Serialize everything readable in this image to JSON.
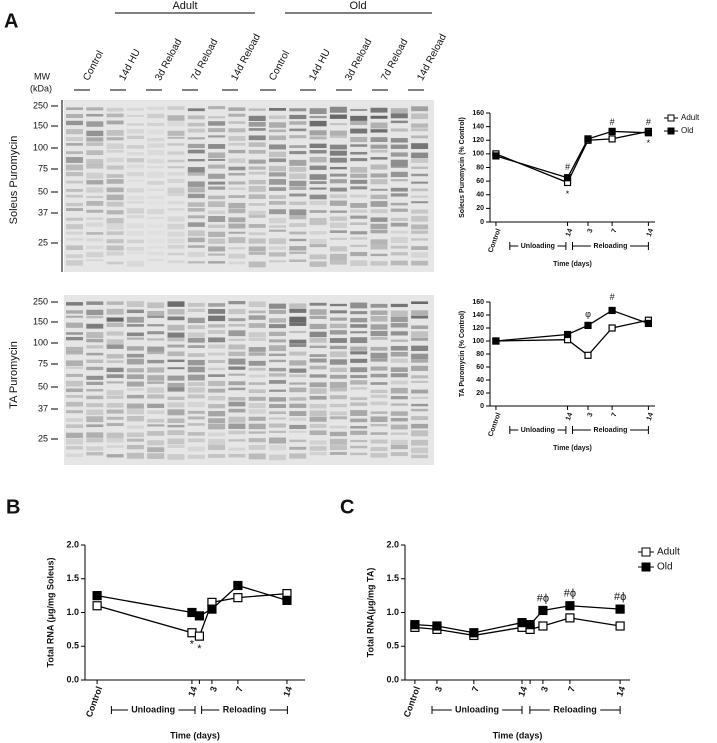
{
  "figure": {
    "panels": [
      "A",
      "B",
      "C"
    ],
    "blot": {
      "groups": [
        "Adult",
        "Old"
      ],
      "lanes": [
        "Control",
        "14d HU",
        "3d Reload",
        "7d Reload",
        "14d Reload",
        "Control",
        "14d HU",
        "3d Reload",
        "7d Reload",
        "14d Reload"
      ],
      "mw_label": [
        "MW",
        "(kDa)"
      ],
      "soleus_label": "Soleus Puromycin",
      "ta_label": "TA Puromycin",
      "soleus_markers": [
        250,
        150,
        100,
        75,
        50,
        37,
        25
      ],
      "ta_markers": [
        250,
        150,
        100,
        75,
        50,
        37,
        25
      ]
    }
  },
  "chart_data": [
    {
      "type": "line",
      "y_label": "Soleus Puromycin (% Control)",
      "x_label": "Time (days)",
      "phases": [
        "Unloading",
        "Reloading"
      ],
      "categories": [
        "Control",
        "14",
        "3",
        "7",
        "14"
      ],
      "series": [
        {
          "name": "Adult",
          "color": "#000000",
          "values": [
            100,
            58,
            120,
            122,
            133
          ]
        },
        {
          "name": "Old",
          "color": "#000000",
          "values": [
            97,
            65,
            122,
            133,
            131
          ]
        }
      ],
      "ylim": [
        0,
        160
      ],
      "yticks": [
        0,
        20,
        40,
        60,
        80,
        100,
        120,
        140,
        160
      ],
      "legend": "right",
      "annotations": [
        "#",
        "*",
        "#",
        "#",
        "*"
      ]
    },
    {
      "type": "line",
      "y_label": "TA Puromycin (% Control)",
      "x_label": "Time (days)",
      "phases": [
        "Unloading",
        "Reloading"
      ],
      "categories": [
        "Control",
        "14",
        "3",
        "7",
        "14"
      ],
      "series": [
        {
          "name": "Adult",
          "color": "#000000",
          "values": [
            100,
            102,
            78,
            120,
            132
          ]
        },
        {
          "name": "Old",
          "color": "#000000",
          "values": [
            100,
            110,
            124,
            147,
            127
          ]
        }
      ],
      "ylim": [
        0,
        160
      ],
      "yticks": [
        0,
        20,
        40,
        60,
        80,
        100,
        120,
        140,
        160
      ],
      "annotations": [
        "φ",
        "#"
      ]
    },
    {
      "type": "line",
      "y_label": "Total RNA (μg/mg Soleus)",
      "x_label": "Time (days)",
      "phases": [
        "Unloading",
        "Reloading"
      ],
      "categories": [
        "Control",
        "14",
        null,
        "3",
        "7",
        "14"
      ],
      "series": [
        {
          "name": "Adult",
          "color": "#000000",
          "values": [
            1.1,
            0.7,
            0.65,
            1.15,
            1.22,
            1.28
          ]
        },
        {
          "name": "Old",
          "color": "#000000",
          "values": [
            1.25,
            1.0,
            0.95,
            1.05,
            1.4,
            1.18
          ]
        }
      ],
      "ylim": [
        0,
        2
      ],
      "yticks": [
        {
          "value": 0,
          "label": "0.0"
        },
        {
          "value": 0.5,
          "label": "0.5"
        },
        {
          "value": 1,
          "label": "1.0"
        },
        {
          "value": 1.5,
          "label": "1.5"
        },
        {
          "value": 2,
          "label": "2.0"
        }
      ],
      "annotations": [
        "*",
        "*"
      ]
    },
    {
      "type": "line",
      "y_label": "Total RNA(μg/mg TA)",
      "x_label": "Time (days)",
      "phases": [
        "Unloading",
        "Reloading"
      ],
      "categories": [
        "Control",
        "3",
        "7",
        "14",
        null,
        "3",
        "7",
        "14"
      ],
      "series": [
        {
          "name": "Adult",
          "color": "#000000",
          "values": [
            0.78,
            0.75,
            0.66,
            0.78,
            0.75,
            0.8,
            0.92,
            0.8
          ]
        },
        {
          "name": "Old",
          "color": "#000000",
          "values": [
            0.82,
            0.8,
            0.7,
            0.85,
            0.82,
            1.03,
            1.1,
            1.05
          ]
        }
      ],
      "ylim": [
        0,
        2
      ],
      "yticks": [
        {
          "value": 0,
          "label": "0.0"
        },
        {
          "value": 0.5,
          "label": "0.5"
        },
        {
          "value": 1,
          "label": "1.0"
        },
        {
          "value": 1.5,
          "label": "1.5"
        },
        {
          "value": 2,
          "label": "2.0"
        }
      ],
      "legend": "right",
      "annotations": [
        "#ϕ",
        "#ϕ",
        "#ϕ"
      ]
    }
  ]
}
